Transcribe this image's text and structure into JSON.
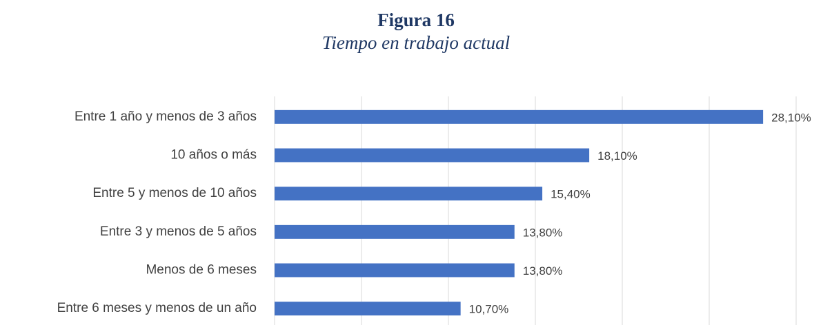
{
  "chart_data": {
    "type": "bar",
    "orientation": "horizontal",
    "title": "Figura 16",
    "subtitle": "Tiempo en trabajo actual",
    "categories": [
      "Entre 1 año y menos de 3 años",
      "10 años o más",
      "Entre 5 y menos de 10 años",
      "Entre 3 y menos de 5 años",
      "Menos de 6 meses",
      "Entre 6 meses y menos de un año"
    ],
    "values": [
      28.1,
      18.1,
      15.4,
      13.8,
      13.8,
      10.7
    ],
    "value_labels": [
      "28,10%",
      "18,10%",
      "15,40%",
      "13,80%",
      "13,80%",
      "10,70%"
    ],
    "color": "#4472c4",
    "xlim": [
      0,
      30
    ],
    "xticks": [
      0,
      5,
      10,
      15,
      20,
      25,
      30
    ],
    "grid": true
  }
}
